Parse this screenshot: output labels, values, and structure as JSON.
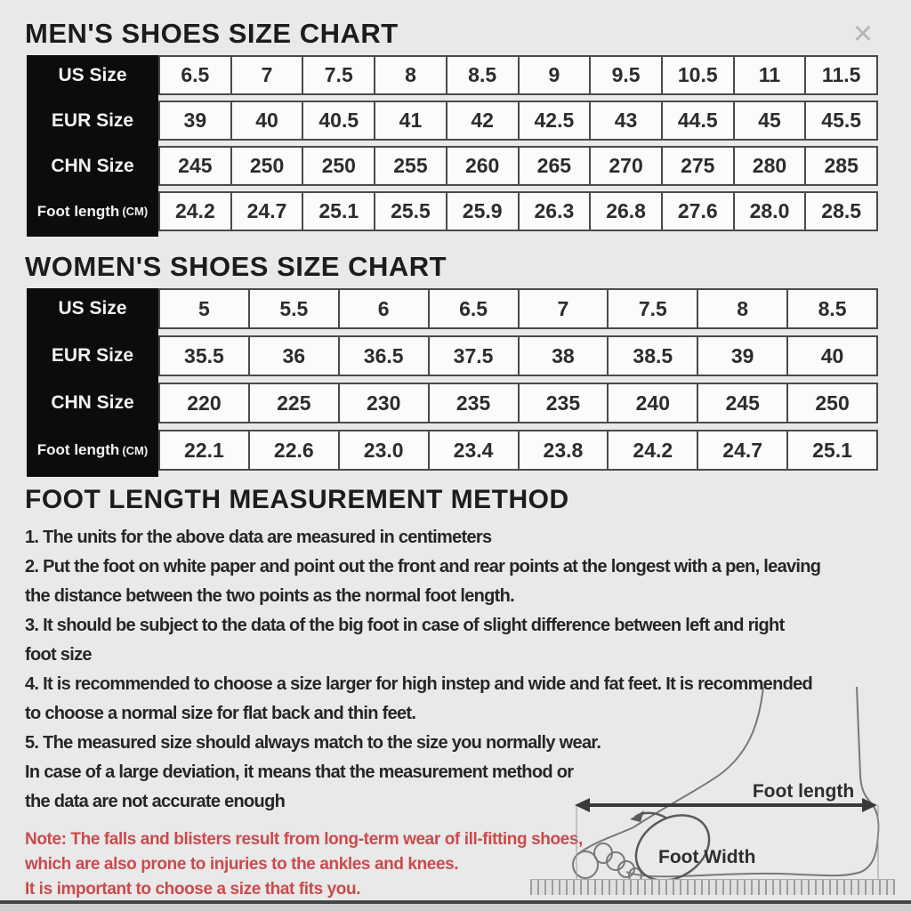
{
  "close_icon": "×",
  "colors": {
    "note_red": "#cb4a4d",
    "header_black": "#0c0c0c",
    "cell_border": "#4a4a4a"
  },
  "mens": {
    "title": "MEN'S SHOES SIZE CHART",
    "rows": [
      {
        "label": "US Size",
        "unit": "",
        "values": [
          "6.5",
          "7",
          "7.5",
          "8",
          "8.5",
          "9",
          "9.5",
          "10.5",
          "11",
          "11.5"
        ]
      },
      {
        "label": "EUR Size",
        "unit": "",
        "values": [
          "39",
          "40",
          "40.5",
          "41",
          "42",
          "42.5",
          "43",
          "44.5",
          "45",
          "45.5"
        ]
      },
      {
        "label": "CHN Size",
        "unit": "",
        "values": [
          "245",
          "250",
          "250",
          "255",
          "260",
          "265",
          "270",
          "275",
          "280",
          "285"
        ]
      },
      {
        "label": "Foot length",
        "unit": "(CM)",
        "values": [
          "24.2",
          "24.7",
          "25.1",
          "25.5",
          "25.9",
          "26.3",
          "26.8",
          "27.6",
          "28.0",
          "28.5"
        ]
      }
    ]
  },
  "womens": {
    "title": "WOMEN'S SHOES SIZE CHART",
    "rows": [
      {
        "label": "US Size",
        "unit": "",
        "values": [
          "5",
          "5.5",
          "6",
          "6.5",
          "7",
          "7.5",
          "8",
          "8.5"
        ]
      },
      {
        "label": "EUR Size",
        "unit": "",
        "values": [
          "35.5",
          "36",
          "36.5",
          "37.5",
          "38",
          "38.5",
          "39",
          "40"
        ]
      },
      {
        "label": "CHN Size",
        "unit": "",
        "values": [
          "220",
          "225",
          "230",
          "235",
          "235",
          "240",
          "245",
          "250"
        ]
      },
      {
        "label": "Foot length",
        "unit": "(CM)",
        "values": [
          "22.1",
          "22.6",
          "23.0",
          "23.4",
          "23.8",
          "24.2",
          "24.7",
          "25.1"
        ]
      }
    ]
  },
  "method": {
    "title": "FOOT LENGTH MEASUREMENT METHOD",
    "lines": [
      "1. The units for the above data are measured in centimeters",
      "2. Put the foot on white paper and point out the front and rear points at the longest with a pen, leaving",
      "the distance between the two points as the normal foot length.",
      "3. It should be subject to the data of the big foot in case of slight difference between left and right",
      "foot size",
      "4. It is recommended to choose a size larger for high instep and wide and fat feet. It is recommended",
      "to choose a normal size for flat back and thin feet.",
      "5. The measured size should always match to the size you normally wear.",
      "In case of a large deviation, it means that the measurement method or",
      "the data are not accurate enough"
    ]
  },
  "note": {
    "lines": [
      "Note: The falls and blisters result from long-term wear of ill-fitting shoes,",
      "which are also prone to injuries to the ankles and knees.",
      "It is important to choose a size that fits you."
    ]
  },
  "diagram": {
    "foot_length_label": "Foot length",
    "foot_width_label": "Foot Width"
  }
}
